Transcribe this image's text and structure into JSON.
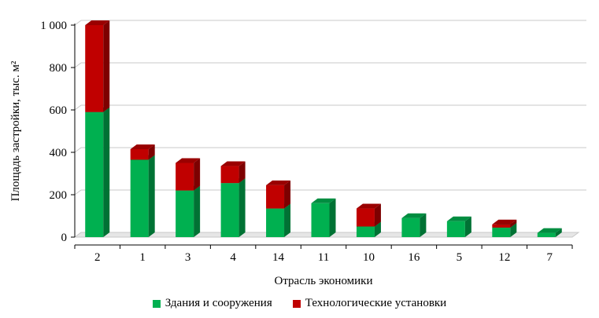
{
  "chart_data": {
    "type": "bar",
    "stacked": true,
    "three_d": true,
    "xlabel": "Отрасль экономики",
    "ylabel": "Площадь застройки, тыс. м²",
    "ylim": [
      0,
      1000
    ],
    "yticks": [
      0,
      200,
      400,
      600,
      800,
      1000
    ],
    "ytick_labels": [
      "0",
      "200",
      "400",
      "600",
      "800",
      "1 000"
    ],
    "grid": true,
    "legend_position": "bottom",
    "categories": [
      "2",
      "1",
      "3",
      "4",
      "14",
      "11",
      "10",
      "16",
      "5",
      "12",
      "7"
    ],
    "series": [
      {
        "name": "Здания и сооружения",
        "color": "#00b050",
        "values": [
          590,
          365,
          220,
          255,
          135,
          160,
          50,
          90,
          75,
          45,
          20
        ]
      },
      {
        "name": "Технологические установки",
        "color": "#c00000",
        "values": [
          410,
          50,
          130,
          80,
          110,
          0,
          85,
          0,
          0,
          15,
          0
        ]
      }
    ]
  }
}
